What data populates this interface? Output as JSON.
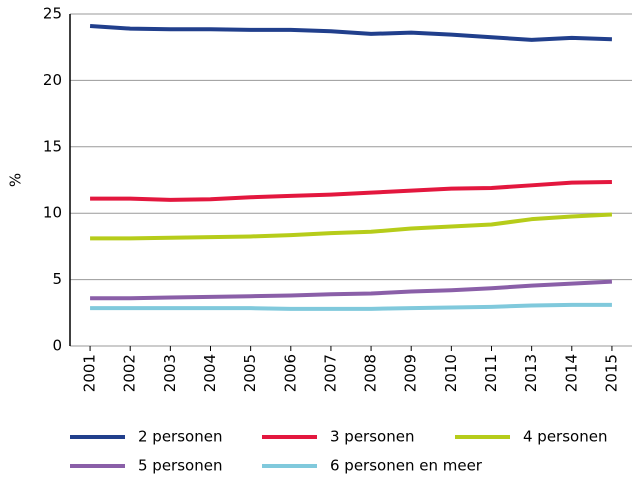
{
  "chart_data": {
    "type": "line",
    "y_label": "%",
    "categories": [
      "2001",
      "2002",
      "2003",
      "2004",
      "2005",
      "2006",
      "2007",
      "2008",
      "2009",
      "2010",
      "2011",
      "2013",
      "2014",
      "2015"
    ],
    "ylim": [
      0,
      25
    ],
    "yticks": [
      0,
      5,
      10,
      15,
      20,
      25
    ],
    "grid": true,
    "legend": "bottom",
    "series": [
      {
        "name": "2 personen",
        "color": "#213f8c",
        "values": [
          24.1,
          23.9,
          23.85,
          23.85,
          23.8,
          23.8,
          23.7,
          23.5,
          23.6,
          23.45,
          23.25,
          23.05,
          23.2,
          23.1
        ]
      },
      {
        "name": "3 personen",
        "color": "#e3173e",
        "values": [
          11.1,
          11.1,
          11.0,
          11.05,
          11.2,
          11.3,
          11.4,
          11.55,
          11.7,
          11.85,
          11.9,
          12.1,
          12.3,
          12.35
        ]
      },
      {
        "name": "4 personen",
        "color": "#b6cc1a",
        "values": [
          8.1,
          8.1,
          8.15,
          8.2,
          8.25,
          8.35,
          8.5,
          8.6,
          8.85,
          9.0,
          9.15,
          9.55,
          9.75,
          9.9
        ]
      },
      {
        "name": "5 personen",
        "color": "#8a5fa8",
        "values": [
          3.6,
          3.6,
          3.65,
          3.7,
          3.75,
          3.8,
          3.9,
          3.95,
          4.1,
          4.2,
          4.35,
          4.55,
          4.7,
          4.85
        ]
      },
      {
        "name": "6 personen en meer",
        "color": "#80c9dc",
        "values": [
          2.85,
          2.85,
          2.85,
          2.85,
          2.85,
          2.8,
          2.8,
          2.8,
          2.85,
          2.9,
          2.95,
          3.05,
          3.1,
          3.1
        ]
      }
    ]
  }
}
